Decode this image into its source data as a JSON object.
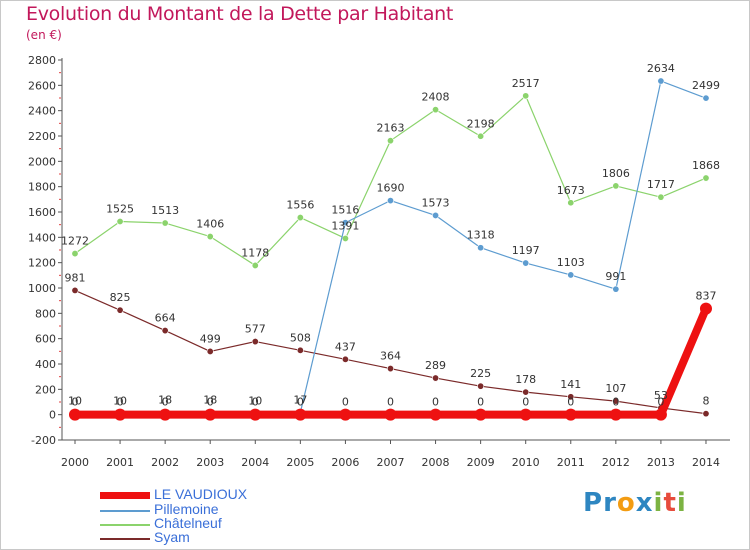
{
  "header": {
    "title": "Evolution du Montant de la Dette par Habitant",
    "unit": "(en €)"
  },
  "logo": {
    "text": "Proxiti",
    "letters": [
      {
        "ch": "P",
        "color": "#2e86c1"
      },
      {
        "ch": "r",
        "color": "#2e86c1"
      },
      {
        "ch": "o",
        "color": "#f39c12"
      },
      {
        "ch": "x",
        "color": "#2e86c1"
      },
      {
        "ch": "i",
        "color": "#7cb342"
      },
      {
        "ch": "t",
        "color": "#e74c3c"
      },
      {
        "ch": "i",
        "color": "#7cb342"
      }
    ]
  },
  "chart_data": {
    "type": "line",
    "title": "Evolution du Montant de la Dette par Habitant",
    "ylabel": "(en €)",
    "xlabel": "",
    "ylim": [
      -200,
      2800
    ],
    "yticks": [
      -200,
      0,
      200,
      400,
      600,
      800,
      1000,
      1200,
      1400,
      1600,
      1800,
      2000,
      2200,
      2400,
      2600,
      2800
    ],
    "categories": [
      "2000",
      "2001",
      "2002",
      "2003",
      "2004",
      "2005",
      "2006",
      "2007",
      "2008",
      "2009",
      "2010",
      "2011",
      "2012",
      "2013",
      "2014"
    ],
    "grid": false,
    "legend_position": "bottom-left",
    "series": [
      {
        "name": "LE VAUDIOUX",
        "color": "#ee1111",
        "width": 8,
        "values": [
          0,
          0,
          0,
          0,
          0,
          0,
          0,
          0,
          0,
          0,
          0,
          0,
          0,
          0,
          837
        ]
      },
      {
        "name": "Pillemoine",
        "color": "#5d9cd0",
        "width": 1.2,
        "values": [
          10,
          10,
          18,
          18,
          10,
          17,
          1516,
          1690,
          1573,
          1318,
          1197,
          1103,
          991,
          2634,
          2499
        ]
      },
      {
        "name": "Châtelneuf",
        "color": "#8bd36c",
        "width": 1.2,
        "values": [
          1272,
          1525,
          1513,
          1406,
          1178,
          1556,
          1391,
          2163,
          2408,
          2198,
          2517,
          1673,
          1806,
          1717,
          1868
        ]
      },
      {
        "name": "Syam",
        "color": "#7b2a2a",
        "width": 1.2,
        "values": [
          981,
          825,
          664,
          499,
          577,
          508,
          437,
          364,
          289,
          225,
          178,
          141,
          107,
          53,
          8
        ]
      }
    ]
  }
}
